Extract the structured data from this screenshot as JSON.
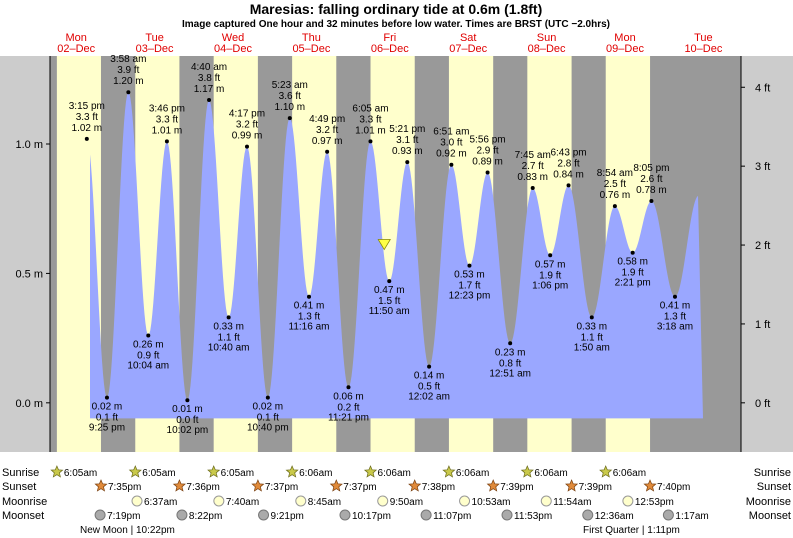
{
  "title": "Maresias: falling  ordinary tide at 0.6m (1.8ft)",
  "subtitle": "Image captured One hour and 32 minutes before low water. Times are BRST (UTC −2.0hrs)",
  "chart_data": {
    "type": "area",
    "title": "Maresias: falling  ordinary tide at 0.6m (1.8ft)",
    "subtitle": "Image captured One hour and 32 minutes before low water. Times are BRST (UTC −2.0hrs)",
    "y_left_ticks": [
      {
        "v": 0,
        "label": "0.0 m"
      },
      {
        "v": 0.5,
        "label": "0.5 m"
      },
      {
        "v": 1.0,
        "label": "1.0 m"
      }
    ],
    "y_right_ticks": [
      {
        "ft": 0,
        "label": "0 ft"
      },
      {
        "ft": 1,
        "label": "1 ft"
      },
      {
        "ft": 2,
        "label": "2 ft"
      },
      {
        "ft": 3,
        "label": "3 ft"
      },
      {
        "ft": 4,
        "label": "4 ft"
      }
    ],
    "ylim_m": [
      -0.19,
      1.34
    ],
    "days": [
      {
        "dow": "Mon",
        "date": "02–Dec"
      },
      {
        "dow": "Tue",
        "date": "03–Dec"
      },
      {
        "dow": "Wed",
        "date": "04–Dec"
      },
      {
        "dow": "Thu",
        "date": "05–Dec"
      },
      {
        "dow": "Fri",
        "date": "06–Dec"
      },
      {
        "dow": "Sat",
        "date": "07–Dec"
      },
      {
        "dow": "Sun",
        "date": "08–Dec"
      },
      {
        "dow": "Mon",
        "date": "09–Dec"
      },
      {
        "dow": "Tue",
        "date": "10–Dec"
      }
    ],
    "tides": [
      {
        "t": "2024-12-02 15:15",
        "time": "3:15 pm",
        "ft": "3.3 ft",
        "m": "1.02 m",
        "h": 1.02,
        "type": "high"
      },
      {
        "t": "2024-12-02 21:25",
        "time": "9:25 pm",
        "ft": "0.1 ft",
        "m": "0.02 m",
        "h": 0.02,
        "type": "low"
      },
      {
        "t": "2024-12-03 03:58",
        "time": "3:58 am",
        "ft": "3.9 ft",
        "m": "1.20 m",
        "h": 1.2,
        "type": "high"
      },
      {
        "t": "2024-12-03 10:04",
        "time": "10:04 am",
        "ft": "0.9 ft",
        "m": "0.26 m",
        "h": 0.26,
        "type": "low"
      },
      {
        "t": "2024-12-03 15:46",
        "time": "3:46 pm",
        "ft": "3.3 ft",
        "m": "1.01 m",
        "h": 1.01,
        "type": "high"
      },
      {
        "t": "2024-12-03 22:02",
        "time": "10:02 pm",
        "ft": "0.0 ft",
        "m": "0.01 m",
        "h": 0.01,
        "type": "low"
      },
      {
        "t": "2024-12-04 04:40",
        "time": "4:40 am",
        "ft": "3.8 ft",
        "m": "1.17 m",
        "h": 1.17,
        "type": "high"
      },
      {
        "t": "2024-12-04 10:40",
        "time": "10:40 am",
        "ft": "1.1 ft",
        "m": "0.33 m",
        "h": 0.33,
        "type": "low"
      },
      {
        "t": "2024-12-04 16:17",
        "time": "4:17 pm",
        "ft": "3.2 ft",
        "m": "0.99 m",
        "h": 0.99,
        "type": "high"
      },
      {
        "t": "2024-12-04 22:40",
        "time": "10:40 pm",
        "ft": "0.1 ft",
        "m": "0.02 m",
        "h": 0.02,
        "type": "low"
      },
      {
        "t": "2024-12-05 05:23",
        "time": "5:23 am",
        "ft": "3.6 ft",
        "m": "1.10 m",
        "h": 1.1,
        "type": "high"
      },
      {
        "t": "2024-12-05 11:16",
        "time": "11:16 am",
        "ft": "1.3 ft",
        "m": "0.41 m",
        "h": 0.41,
        "type": "low"
      },
      {
        "t": "2024-12-05 16:49",
        "time": "4:49 pm",
        "ft": "3.2 ft",
        "m": "0.97 m",
        "h": 0.97,
        "type": "high"
      },
      {
        "t": "2024-12-05 23:21",
        "time": "11:21 pm",
        "ft": "0.2 ft",
        "m": "0.06 m",
        "h": 0.06,
        "type": "low"
      },
      {
        "t": "2024-12-06 06:05",
        "time": "6:05 am",
        "ft": "3.3 ft",
        "m": "1.01 m",
        "h": 1.01,
        "type": "high"
      },
      {
        "t": "2024-12-06 11:50",
        "time": "11:50 am",
        "ft": "1.5 ft",
        "m": "0.47 m",
        "h": 0.47,
        "type": "low"
      },
      {
        "t": "2024-12-06 17:21",
        "time": "5:21 pm",
        "ft": "3.1 ft",
        "m": "0.93 m",
        "h": 0.93,
        "type": "high"
      },
      {
        "t": "2024-12-07 00:02",
        "time": "12:02 am",
        "ft": "0.5 ft",
        "m": "0.14 m",
        "h": 0.14,
        "type": "low"
      },
      {
        "t": "2024-12-07 06:51",
        "time": "6:51 am",
        "ft": "3.0 ft",
        "m": "0.92 m",
        "h": 0.92,
        "type": "high"
      },
      {
        "t": "2024-12-07 12:23",
        "time": "12:23 pm",
        "ft": "1.7 ft",
        "m": "0.53 m",
        "h": 0.53,
        "type": "low"
      },
      {
        "t": "2024-12-07 17:56",
        "time": "5:56 pm",
        "ft": "2.9 ft",
        "m": "0.89 m",
        "h": 0.89,
        "type": "high"
      },
      {
        "t": "2024-12-08 00:51",
        "time": "12:51 am",
        "ft": "0.8 ft",
        "m": "0.23 m",
        "h": 0.23,
        "type": "low"
      },
      {
        "t": "2024-12-08 07:45",
        "time": "7:45 am",
        "ft": "2.7 ft",
        "m": "0.83 m",
        "h": 0.83,
        "type": "high"
      },
      {
        "t": "2024-12-08 13:06",
        "time": "1:06 pm",
        "ft": "1.9 ft",
        "m": "0.57 m",
        "h": 0.57,
        "type": "low"
      },
      {
        "t": "2024-12-08 18:43",
        "time": "6:43 pm",
        "ft": "2.8 ft",
        "m": "0.84 m",
        "h": 0.84,
        "type": "high"
      },
      {
        "t": "2024-12-09 01:50",
        "time": "1:50 am",
        "ft": "1.1 ft",
        "m": "0.33 m",
        "h": 0.33,
        "type": "low"
      },
      {
        "t": "2024-12-09 08:54",
        "time": "8:54 am",
        "ft": "2.5 ft",
        "m": "0.76 m",
        "h": 0.76,
        "type": "high"
      },
      {
        "t": "2024-12-09 14:21",
        "time": "2:21 pm",
        "ft": "1.9 ft",
        "m": "0.58 m",
        "h": 0.58,
        "type": "low"
      },
      {
        "t": "2024-12-09 20:05",
        "time": "8:05 pm",
        "ft": "2.6 ft",
        "m": "0.78 m",
        "h": 0.78,
        "type": "high"
      },
      {
        "t": "2024-12-10 03:18",
        "time": "3:18 am",
        "ft": "1.3 ft",
        "m": "0.41 m",
        "h": 0.41,
        "type": "low"
      }
    ],
    "current": {
      "t": "2024-12-06 10:18",
      "h": 0.6
    },
    "sunrise": [
      "6:05am",
      "6:05am",
      "6:05am",
      "6:06am",
      "6:06am",
      "6:06am",
      "6:06am",
      "6:06am"
    ],
    "sunset": [
      "7:35pm",
      "7:36pm",
      "7:37pm",
      "7:37pm",
      "7:38pm",
      "7:39pm",
      "7:39pm",
      "7:40pm"
    ],
    "moonrise": [
      "6:37am",
      "7:40am",
      "8:45am",
      "9:50am",
      "10:53am",
      "11:54am",
      "12:53pm"
    ],
    "moonset": [
      "7:19pm",
      "8:22pm",
      "9:21pm",
      "10:17pm",
      "11:07pm",
      "11:53pm",
      "12:36am",
      "1:17am"
    ],
    "phases": [
      "New Moon | 10:22pm",
      "First Quarter | 1:11pm"
    ],
    "row_labels": [
      "Sunrise",
      "Sunset",
      "Moonrise",
      "Moonset"
    ],
    "colors": {
      "night": "#999999",
      "day": "#ffffcc",
      "water": "#9aa7ff",
      "frame": "#cccccc",
      "day_text": "#e00000"
    }
  }
}
